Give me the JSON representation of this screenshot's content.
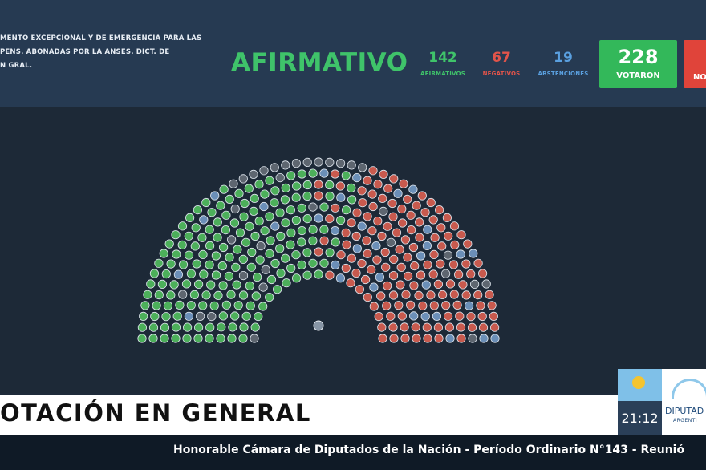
{
  "motion": {
    "line1": "MENTO EXCEPCIONAL Y DE EMERGENCIA PARA LAS",
    "line2": "PENS. ABONADAS POR LA ANSES. DICT. DE",
    "line3": "N GRAL."
  },
  "result": {
    "label": "AFIRMATIVO",
    "color": "#3fc36a"
  },
  "counts": {
    "afirmativos": {
      "value": "142",
      "label": "AFIRMATIVOS",
      "color": "#3fc36a"
    },
    "negativos": {
      "value": "67",
      "label": "NEGATIVOS",
      "color": "#e2544a"
    },
    "abstenciones": {
      "value": "19",
      "label": "ABSTENCIONES",
      "color": "#5aa0e0"
    },
    "votaron": {
      "value": "228",
      "label": "VOTARON",
      "color": "#33b85a"
    },
    "no_votaron": {
      "label": "NO",
      "color": "#e0443a"
    }
  },
  "chamber": {
    "seat_colors": {
      "afirmativo": "#4caf5a",
      "negativo": "#c85a4e",
      "abstencion": "#6b8fb8",
      "ausente": "#5e6670",
      "presidente": "#8896a6"
    }
  },
  "lower_third": {
    "title": "OTACIÓN EN GENERAL"
  },
  "clock": {
    "time": "21:12"
  },
  "logo": {
    "name": "DIPUTAD",
    "sub": "ARGENTI"
  },
  "ticker": {
    "text": "Honorable Cámara de Diputados de la Nación - Período Ordinario N°143 - Reunió"
  }
}
